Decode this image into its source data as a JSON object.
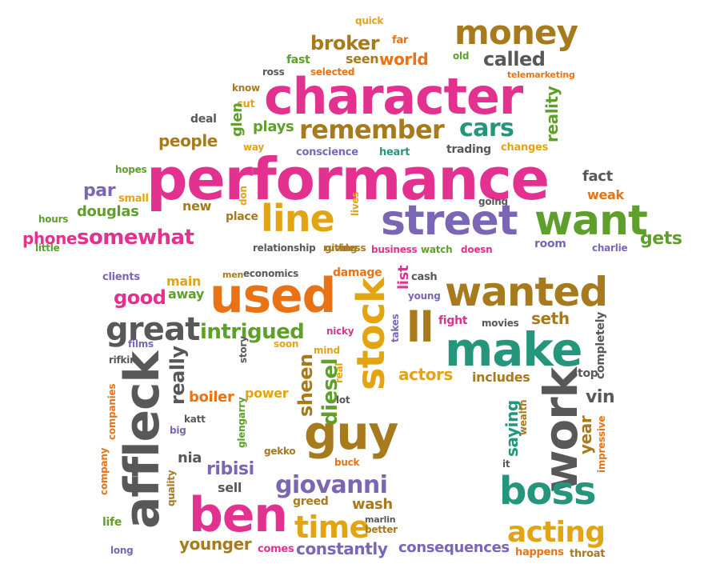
{
  "words": [
    {
      "text": "performance",
      "color": "pink"
    },
    {
      "text": "character",
      "color": "pink"
    },
    {
      "text": "money",
      "color": "olive"
    },
    {
      "text": "broker",
      "color": "olive"
    },
    {
      "text": "world",
      "color": "orange"
    },
    {
      "text": "called",
      "color": "gray"
    },
    {
      "text": "seen",
      "color": "olive"
    },
    {
      "text": "fast",
      "color": "green"
    },
    {
      "text": "far",
      "color": "orange"
    },
    {
      "text": "quick",
      "color": "gold"
    },
    {
      "text": "old",
      "color": "green"
    },
    {
      "text": "ross",
      "color": "gray"
    },
    {
      "text": "selected",
      "color": "orange"
    },
    {
      "text": "telemarketing",
      "color": "orange"
    },
    {
      "text": "know",
      "color": "olive"
    },
    {
      "text": "cut",
      "color": "gold"
    },
    {
      "text": "reality",
      "color": "green"
    },
    {
      "text": "deal",
      "color": "gray"
    },
    {
      "text": "glen",
      "color": "green"
    },
    {
      "text": "plays",
      "color": "green"
    },
    {
      "text": "remember",
      "color": "olive"
    },
    {
      "text": "cars",
      "color": "teal"
    },
    {
      "text": "people",
      "color": "olive"
    },
    {
      "text": "way",
      "color": "gold"
    },
    {
      "text": "conscience",
      "color": "purple"
    },
    {
      "text": "heart",
      "color": "teal"
    },
    {
      "text": "trading",
      "color": "gray"
    },
    {
      "text": "changes",
      "color": "gold"
    },
    {
      "text": "hopes",
      "color": "green"
    },
    {
      "text": "fact",
      "color": "gray"
    },
    {
      "text": "par",
      "color": "purple"
    },
    {
      "text": "small",
      "color": "gold"
    },
    {
      "text": "don",
      "color": "gold"
    },
    {
      "text": "douglas",
      "color": "green"
    },
    {
      "text": "new",
      "color": "olive"
    },
    {
      "text": "lives",
      "color": "gold"
    },
    {
      "text": "going",
      "color": "gray"
    },
    {
      "text": "weak",
      "color": "orange"
    },
    {
      "text": "hours",
      "color": "green"
    },
    {
      "text": "line",
      "color": "gold"
    },
    {
      "text": "street",
      "color": "purple"
    },
    {
      "text": "want",
      "color": "green"
    },
    {
      "text": "place",
      "color": "olive"
    },
    {
      "text": "phone",
      "color": "pink"
    },
    {
      "text": "somewhat",
      "color": "pink"
    },
    {
      "text": "gets",
      "color": "green"
    },
    {
      "text": "little",
      "color": "green"
    },
    {
      "text": "relationship",
      "color": "gray"
    },
    {
      "text": "giving",
      "color": "olive"
    },
    {
      "text": "ruthless",
      "color": "olive"
    },
    {
      "text": "business",
      "color": "pink"
    },
    {
      "text": "watch",
      "color": "green"
    },
    {
      "text": "doesn",
      "color": "pink"
    },
    {
      "text": "room",
      "color": "purple"
    },
    {
      "text": "charlie",
      "color": "purple"
    },
    {
      "text": "clients",
      "color": "purple"
    },
    {
      "text": "men",
      "color": "olive"
    },
    {
      "text": "economics",
      "color": "gray"
    },
    {
      "text": "damage",
      "color": "orange"
    },
    {
      "text": "cash",
      "color": "gray"
    },
    {
      "text": "main",
      "color": "gold"
    },
    {
      "text": "away",
      "color": "green"
    },
    {
      "text": "used",
      "color": "orange"
    },
    {
      "text": "stock",
      "color": "gold"
    },
    {
      "text": "list",
      "color": "pink"
    },
    {
      "text": "young",
      "color": "purple"
    },
    {
      "text": "wanted",
      "color": "olive"
    },
    {
      "text": "good",
      "color": "pink"
    },
    {
      "text": "great",
      "color": "gray"
    },
    {
      "text": "intrigued",
      "color": "green"
    },
    {
      "text": "nicky",
      "color": "pink"
    },
    {
      "text": "soon",
      "color": "gold"
    },
    {
      "text": "ll",
      "color": "olive"
    },
    {
      "text": "fight",
      "color": "pink"
    },
    {
      "text": "movies",
      "color": "gray"
    },
    {
      "text": "seth",
      "color": "olive"
    },
    {
      "text": "takes",
      "color": "purple"
    },
    {
      "text": "make",
      "color": "teal"
    },
    {
      "text": "completely",
      "color": "gray"
    },
    {
      "text": "films",
      "color": "purple"
    },
    {
      "text": "rifkin",
      "color": "gray"
    },
    {
      "text": "story",
      "color": "gray"
    },
    {
      "text": "mind",
      "color": "gold"
    },
    {
      "text": "real",
      "color": "gold"
    },
    {
      "text": "affleck",
      "color": "gray"
    },
    {
      "text": "really",
      "color": "gray"
    },
    {
      "text": "sheen",
      "color": "olive"
    },
    {
      "text": "diesel",
      "color": "green"
    },
    {
      "text": "actors",
      "color": "gold"
    },
    {
      "text": "includes",
      "color": "olive"
    },
    {
      "text": "stop",
      "color": "gray"
    },
    {
      "text": "vin",
      "color": "gray"
    },
    {
      "text": "boiler",
      "color": "orange"
    },
    {
      "text": "power",
      "color": "gold"
    },
    {
      "text": "lot",
      "color": "gray"
    },
    {
      "text": "companies",
      "color": "orange"
    },
    {
      "text": "katt",
      "color": "gray"
    },
    {
      "text": "big",
      "color": "purple"
    },
    {
      "text": "glengarry",
      "color": "green"
    },
    {
      "text": "guy",
      "color": "olive"
    },
    {
      "text": "work",
      "color": "gray"
    },
    {
      "text": "saying",
      "color": "teal"
    },
    {
      "text": "wealth",
      "color": "olive"
    },
    {
      "text": "year",
      "color": "olive"
    },
    {
      "text": "impressive",
      "color": "orange"
    },
    {
      "text": "nia",
      "color": "gray"
    },
    {
      "text": "ribisi",
      "color": "purple"
    },
    {
      "text": "gekko",
      "color": "olive"
    },
    {
      "text": "buck",
      "color": "orange"
    },
    {
      "text": "giovanni",
      "color": "purple"
    },
    {
      "text": "company",
      "color": "orange"
    },
    {
      "text": "it",
      "color": "gray"
    },
    {
      "text": "sell",
      "color": "gray"
    },
    {
      "text": "quality",
      "color": "olive"
    },
    {
      "text": "boss",
      "color": "teal"
    },
    {
      "text": "ben",
      "color": "pink"
    },
    {
      "text": "greed",
      "color": "olive"
    },
    {
      "text": "wash",
      "color": "olive"
    },
    {
      "text": "marlin",
      "color": "gray"
    },
    {
      "text": "time",
      "color": "gold"
    },
    {
      "text": "life",
      "color": "green"
    },
    {
      "text": "better",
      "color": "olive"
    },
    {
      "text": "acting",
      "color": "gold"
    },
    {
      "text": "younger",
      "color": "olive"
    },
    {
      "text": "comes",
      "color": "pink"
    },
    {
      "text": "constantly",
      "color": "purple"
    },
    {
      "text": "consequences",
      "color": "purple"
    },
    {
      "text": "long",
      "color": "purple"
    },
    {
      "text": "happens",
      "color": "orange"
    },
    {
      "text": "throat",
      "color": "olive"
    }
  ]
}
